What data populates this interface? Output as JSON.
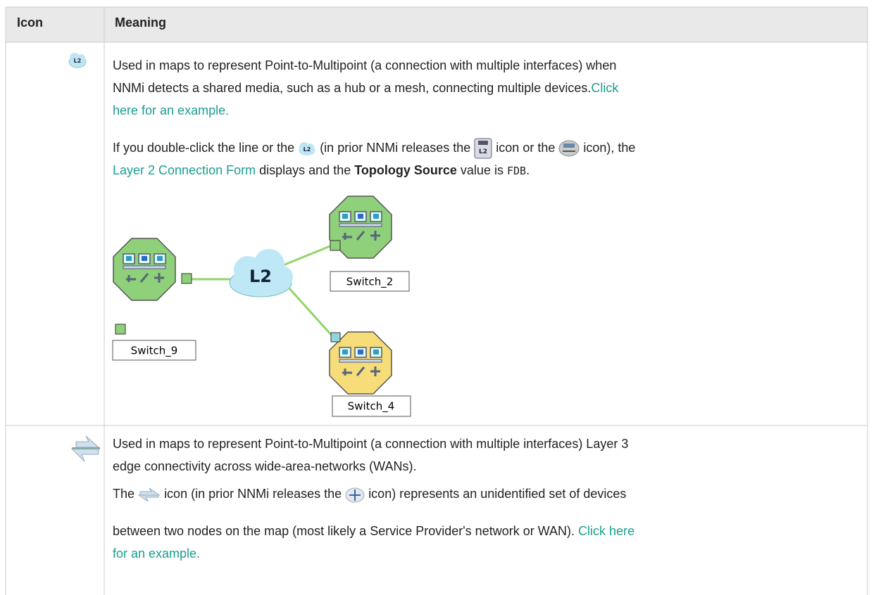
{
  "table": {
    "header": [
      "Icon",
      "Meaning"
    ],
    "rows": [
      {
        "icon_label": "L2",
        "intro": [
          "Used in maps to represent Point-to-Multipoint (a connection with multiple interfaces) when",
          "NNMi detects a shared media, such as a hub or a mesh, connecting multiple devices."
        ],
        "intro_link": [
          "Click",
          "here for an example."
        ],
        "detail": {
          "before": "If you double-click the line or the",
          "mid1": "(in prior NNMi releases the",
          "mid2": "icon or the",
          "mid3": "icon), the",
          "link": "Layer 2 Connection Form",
          "after1": "displays and the",
          "bold": "Topology Source",
          "after2": "value is",
          "code": "FDB",
          "end": "."
        },
        "diagram": {
          "cloud": "L2",
          "nodes": [
            "Switch_9",
            "Switch_2",
            "Switch_4"
          ]
        }
      },
      {
        "intro": [
          "Used in maps to represent Point-to-Multipoint (a connection with multiple interfaces) Layer 3",
          "edge connectivity across wide-area-networks (WANs)."
        ],
        "detail": {
          "before": "The",
          "mid": "icon (in prior NNMi releases the",
          "after": "icon) represents an unidentified set of devices"
        },
        "detail_cont": "between two nodes on the map (most likely a Service Provider's network or WAN).",
        "link": [
          "Click here",
          "for an example."
        ]
      }
    ]
  }
}
